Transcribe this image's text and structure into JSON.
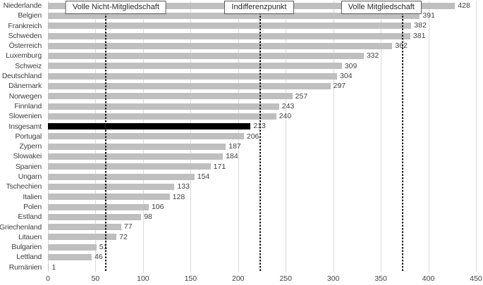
{
  "chart_data": {
    "type": "bar",
    "orientation": "horizontal",
    "title": "",
    "xlabel": "",
    "ylabel": "",
    "xlim": [
      0,
      450
    ],
    "x_ticks": [
      0,
      50,
      100,
      150,
      200,
      250,
      300,
      350,
      400,
      450
    ],
    "grid": true,
    "value_labels": true,
    "categories": [
      "Niederlande",
      "Belgien",
      "Frankreich",
      "Schweden",
      "Österreich",
      "Luxemburg",
      "Schweiz",
      "Deutschland",
      "Dänemark",
      "Norwegen",
      "Finnland",
      "Slowenien",
      "Insgesamt",
      "Portugal",
      "Zypern",
      "Slowakei",
      "Spanien",
      "Ungarn",
      "Tschechien",
      "Italien",
      "Polen",
      "Estland",
      "Griechenland",
      "Litauen",
      "Bulgarien",
      "Lettland",
      "Rumänien"
    ],
    "values": [
      428,
      391,
      382,
      381,
      362,
      332,
      309,
      304,
      297,
      257,
      243,
      240,
      213,
      206,
      187,
      184,
      171,
      154,
      133,
      128,
      106,
      98,
      77,
      72,
      51,
      46,
      1
    ],
    "highlight_category": "Insgesamt",
    "annotations": [
      {
        "label": "Volle Nicht-Mitgliedschaft",
        "line_x": 61,
        "box_center_x": 71.5
      },
      {
        "label": "Indifferenzpunkt",
        "line_x": 223,
        "box_center_x": 222
      },
      {
        "label": "Volle Mitgliedschaft",
        "line_x": 373,
        "box_center_x": 350.5
      }
    ],
    "colors": {
      "bar": "#bfbfbf",
      "highlight_bar": "#000000",
      "gridline": "#dadada",
      "dashed_line": "#141414",
      "text": "#3f3f3f",
      "annotation_border": "#595959",
      "annotation_bg": "#ffffff"
    }
  }
}
